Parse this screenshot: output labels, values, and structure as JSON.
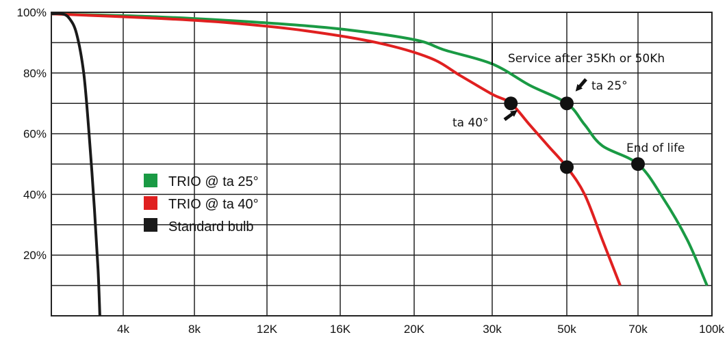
{
  "chart_data": {
    "type": "line",
    "title": "",
    "xlabel": "",
    "ylabel": "",
    "grid": true,
    "legend_position": "center-left",
    "x_tick_labels": [
      "4k",
      "8k",
      "12K",
      "16K",
      "20K",
      "30k",
      "50k",
      "70k",
      "100k"
    ],
    "x_tick_values": [
      4000,
      8000,
      12000,
      16000,
      20000,
      30000,
      50000,
      70000,
      100000
    ],
    "y_tick_labels": [
      "100%",
      "80%",
      "60%",
      "40%",
      "20%"
    ],
    "y_tick_values": [
      100,
      80,
      60,
      40,
      20
    ],
    "ylim": [
      0,
      100
    ],
    "xlim": [
      0,
      100000
    ],
    "series": [
      {
        "name": "TRIO @ ta 25°",
        "color": "#1a9a44",
        "points": [
          [
            0,
            99.5
          ],
          [
            6000,
            98.5
          ],
          [
            12000,
            96.5
          ],
          [
            16000,
            94.5
          ],
          [
            20000,
            91
          ],
          [
            24000,
            87.5
          ],
          [
            30000,
            83
          ],
          [
            40000,
            76
          ],
          [
            50000,
            70
          ],
          [
            55000,
            63
          ],
          [
            60000,
            56
          ],
          [
            70000,
            50
          ],
          [
            80000,
            39
          ],
          [
            90000,
            25
          ],
          [
            98000,
            10
          ]
        ]
      },
      {
        "name": "TRIO @ ta 40°",
        "color": "#e02020",
        "points": [
          [
            0,
            99.5
          ],
          [
            6000,
            98
          ],
          [
            10000,
            96.5
          ],
          [
            14000,
            94
          ],
          [
            18000,
            90
          ],
          [
            22000,
            85
          ],
          [
            26000,
            79
          ],
          [
            30000,
            73
          ],
          [
            35000,
            70
          ],
          [
            40000,
            63
          ],
          [
            45000,
            56
          ],
          [
            50000,
            49
          ],
          [
            55000,
            40
          ],
          [
            60000,
            25
          ],
          [
            65000,
            10
          ]
        ]
      },
      {
        "name": "Standard bulb",
        "color": "#1a1a1a",
        "points": [
          [
            0,
            99.5
          ],
          [
            600,
            99.5
          ],
          [
            1000,
            98
          ],
          [
            1400,
            93
          ],
          [
            1800,
            80
          ],
          [
            2100,
            60
          ],
          [
            2400,
            35
          ],
          [
            2600,
            15
          ],
          [
            2700,
            0
          ]
        ]
      }
    ],
    "markers": [
      {
        "series": "TRIO @ ta 40°",
        "x": 35000,
        "y": 70
      },
      {
        "series": "TRIO @ ta 25°",
        "x": 50000,
        "y": 70
      },
      {
        "series": "TRIO @ ta 40°",
        "x": 50000,
        "y": 49
      },
      {
        "series": "TRIO @ ta 25°",
        "x": 70000,
        "y": 50
      }
    ],
    "annotations": [
      "Service after 35Kh or 50Kh",
      "ta 25°",
      "ta 40°",
      "End of life"
    ]
  }
}
